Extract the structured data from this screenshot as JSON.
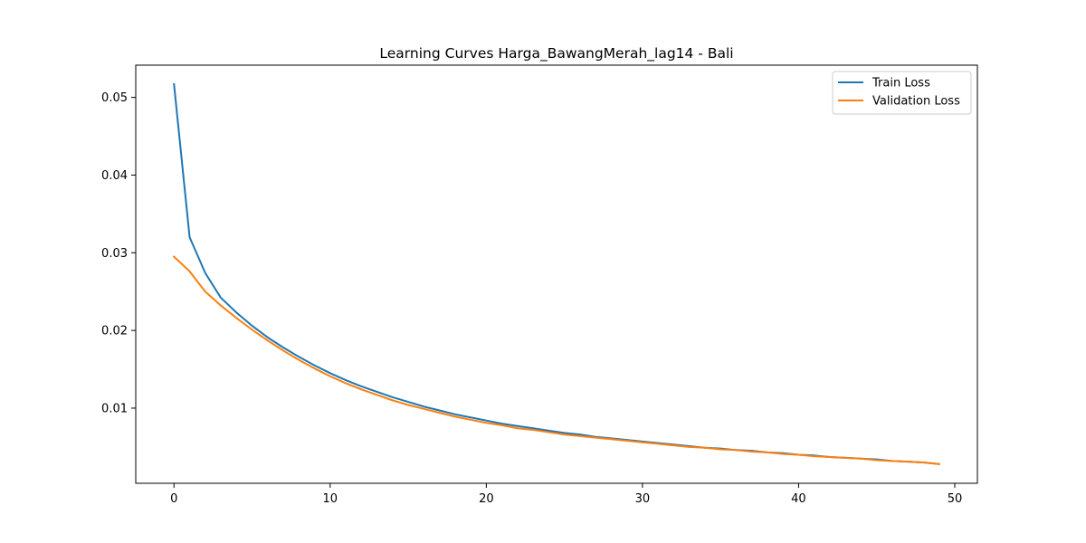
{
  "chart_data": {
    "type": "line",
    "title": "Learning Curves Harga_BawangMerah_lag14 - Bali",
    "xlabel": "",
    "ylabel": "",
    "xlim": [
      -2.45,
      51.45
    ],
    "ylim": [
      0.000325,
      0.05415
    ],
    "x_ticks": [
      0,
      10,
      20,
      30,
      40,
      50
    ],
    "y_ticks": [
      0.01,
      0.02,
      0.03,
      0.04,
      0.05
    ],
    "x_tick_labels": [
      "0",
      "10",
      "20",
      "30",
      "40",
      "50"
    ],
    "y_tick_labels": [
      "0.01",
      "0.02",
      "0.03",
      "0.04",
      "0.05"
    ],
    "grid": false,
    "legend_position": "top-right",
    "x": [
      0,
      1,
      2,
      3,
      4,
      5,
      6,
      7,
      8,
      9,
      10,
      11,
      12,
      13,
      14,
      15,
      16,
      17,
      18,
      19,
      20,
      21,
      22,
      23,
      24,
      25,
      26,
      27,
      28,
      29,
      30,
      31,
      32,
      33,
      34,
      35,
      36,
      37,
      38,
      39,
      40,
      41,
      42,
      43,
      44,
      45,
      46,
      47,
      48,
      49
    ],
    "series": [
      {
        "name": "Train Loss",
        "color": "#1f77b4",
        "values": [
          0.0517,
          0.032,
          0.0274,
          0.0242,
          0.0223,
          0.0206,
          0.0191,
          0.0178,
          0.0166,
          0.0155,
          0.0145,
          0.0136,
          0.0128,
          0.0121,
          0.0114,
          0.0108,
          0.0102,
          0.0097,
          0.0092,
          0.0088,
          0.0084,
          0.008,
          0.0077,
          0.0074,
          0.0071,
          0.0068,
          0.0066,
          0.0063,
          0.0061,
          0.0059,
          0.0057,
          0.0055,
          0.0053,
          0.0051,
          0.0049,
          0.0048,
          0.0046,
          0.0045,
          0.0043,
          0.0042,
          0.004,
          0.0039,
          0.0037,
          0.0036,
          0.0035,
          0.0034,
          0.0032,
          0.0031,
          0.003,
          0.0028
        ]
      },
      {
        "name": "Validation Loss",
        "color": "#ff7f0e",
        "values": [
          0.0295,
          0.0276,
          0.025,
          0.0232,
          0.0216,
          0.0201,
          0.0187,
          0.0174,
          0.0162,
          0.0151,
          0.0141,
          0.0132,
          0.0124,
          0.0117,
          0.011,
          0.0104,
          0.0099,
          0.0094,
          0.0089,
          0.0085,
          0.0081,
          0.0078,
          0.0074,
          0.0072,
          0.0069,
          0.0066,
          0.0064,
          0.0062,
          0.006,
          0.0058,
          0.0056,
          0.0054,
          0.0052,
          0.005,
          0.0049,
          0.0047,
          0.0046,
          0.0044,
          0.0043,
          0.0041,
          0.004,
          0.0038,
          0.0037,
          0.0036,
          0.0035,
          0.0033,
          0.0032,
          0.0031,
          0.003,
          0.0028
        ]
      }
    ]
  }
}
